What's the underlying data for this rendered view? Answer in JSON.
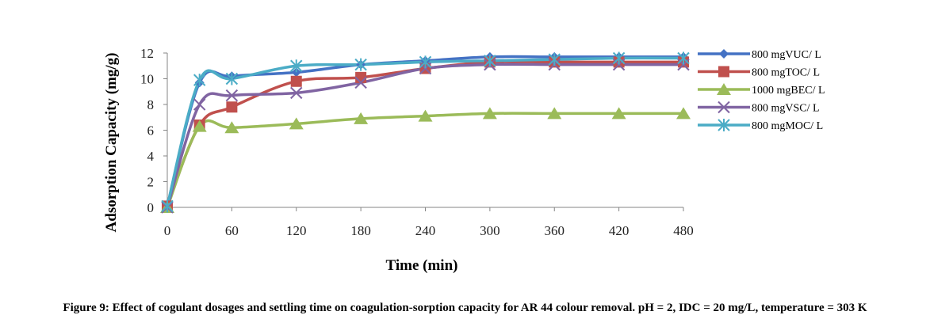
{
  "chart_data": {
    "type": "line",
    "xlabel": "Time (min)",
    "ylabel": "Adsorption Capacity (mg/g)",
    "x": [
      0,
      30,
      60,
      120,
      180,
      240,
      300,
      360,
      420,
      480
    ],
    "x_ticks": [
      0,
      60,
      120,
      180,
      240,
      300,
      360,
      420,
      480
    ],
    "xlim": [
      0,
      480
    ],
    "y_ticks": [
      0,
      2,
      4,
      6,
      8,
      10,
      12
    ],
    "ylim": [
      0,
      12
    ],
    "legend_position": "right",
    "grid": false,
    "series": [
      {
        "name": "800 mgVUC/ L",
        "color": "#4472C4",
        "marker": "diamond",
        "values": [
          0.1,
          9.7,
          10.2,
          10.5,
          11.1,
          11.4,
          11.7,
          11.7,
          11.7,
          11.7
        ]
      },
      {
        "name": "800 mgTOC/ L",
        "color": "#C0504D",
        "marker": "square",
        "values": [
          0.1,
          6.4,
          7.8,
          9.8,
          10.1,
          10.8,
          11.3,
          11.3,
          11.3,
          11.3
        ]
      },
      {
        "name": "1000 mgBEC/ L",
        "color": "#9BBB59",
        "marker": "triangle",
        "values": [
          0.0,
          6.3,
          6.2,
          6.5,
          6.9,
          7.1,
          7.3,
          7.3,
          7.3,
          7.3
        ]
      },
      {
        "name": "800 mgVSC/ L",
        "color": "#8064A2",
        "marker": "x",
        "values": [
          0.0,
          8.0,
          8.7,
          8.9,
          9.7,
          10.8,
          11.1,
          11.1,
          11.1,
          11.1
        ]
      },
      {
        "name": "800 mgMOC/ L",
        "color": "#4BACC6",
        "marker": "star",
        "values": [
          0.1,
          9.9,
          10.0,
          11.0,
          11.1,
          11.3,
          11.4,
          11.5,
          11.6,
          11.6
        ]
      }
    ]
  },
  "caption": "Figure 9: Effect of cogulant dosages and settling time on coagulation-sorption capacity for AR 44 colour removal. pH = 2, IDC = 20 mg/L, temperature = 303 K"
}
